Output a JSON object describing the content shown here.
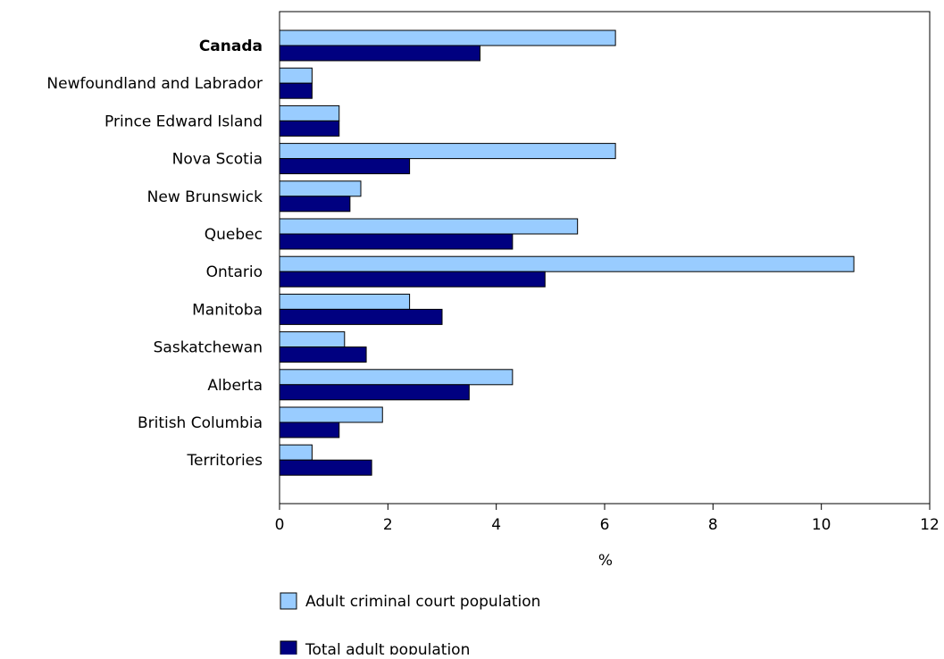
{
  "chart_data": {
    "type": "bar",
    "orientation": "horizontal",
    "categories": [
      "Canada",
      "Newfoundland and Labrador",
      "Prince Edward Island",
      "Nova Scotia",
      "New Brunswick",
      "Quebec",
      "Ontario",
      "Manitoba",
      "Saskatchewan",
      "Alberta",
      "British Columbia",
      "Territories"
    ],
    "bold_categories": [
      "Canada"
    ],
    "series": [
      {
        "name": "Adult criminal court population",
        "values": [
          6.2,
          0.6,
          1.1,
          6.2,
          1.5,
          5.5,
          10.6,
          2.4,
          1.2,
          4.3,
          1.9,
          0.6
        ],
        "color": "#99ccff"
      },
      {
        "name": "Total adult population",
        "values": [
          3.7,
          0.6,
          1.1,
          2.4,
          1.3,
          4.3,
          4.9,
          3.0,
          1.6,
          3.5,
          1.1,
          1.7
        ],
        "color": "#000080"
      }
    ],
    "xlabel": "%",
    "xlim": [
      0,
      12
    ],
    "xticks": [
      0,
      2,
      4,
      6,
      8,
      10,
      12
    ],
    "grid": false,
    "legend_position": "bottom"
  }
}
